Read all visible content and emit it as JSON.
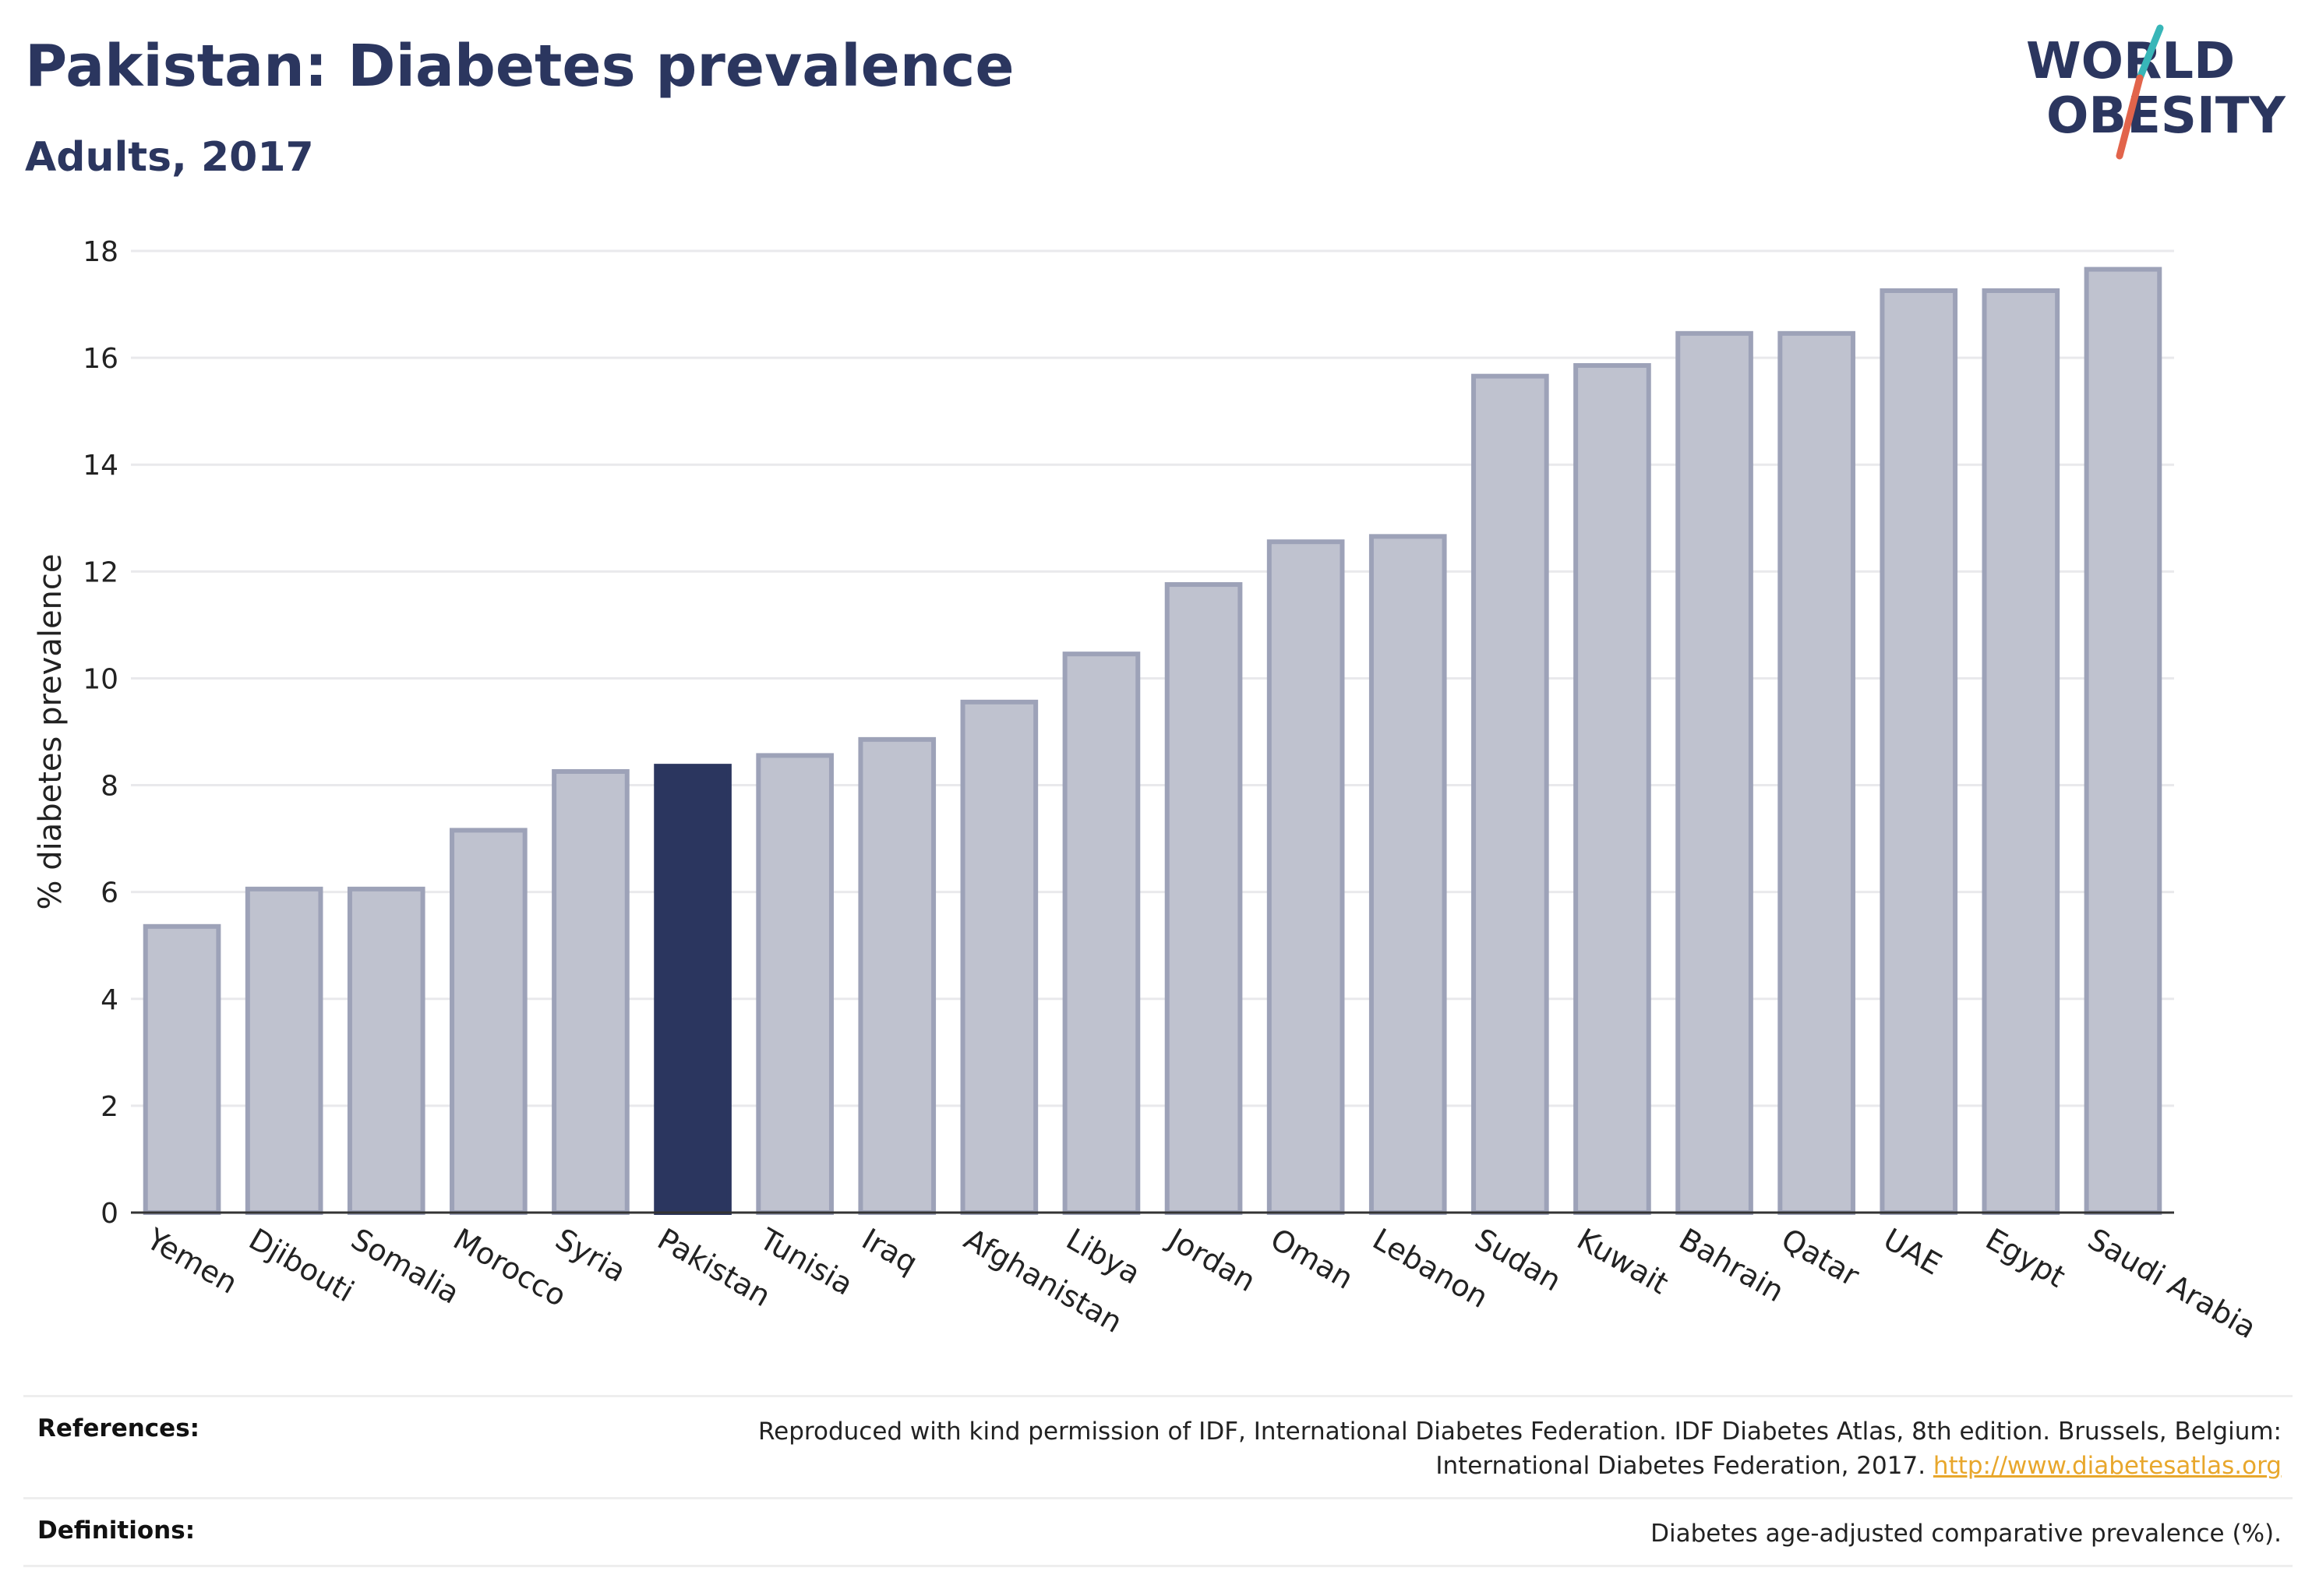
{
  "header": {
    "title": "Pakistan: Diabetes prevalence",
    "subtitle": "Adults, 2017"
  },
  "logo": {
    "line1": "WORLD",
    "line2": "OBESITY",
    "text_color": "#2b365f",
    "slash_color_top": "#38b6b8",
    "slash_color_bottom": "#e2644b"
  },
  "colors": {
    "highlight_bar": "#2b365f",
    "other_bar_fill": "#bfc2cf",
    "other_bar_stroke": "#9da2b8"
  },
  "chart_data": {
    "type": "bar",
    "title": "Pakistan: Diabetes prevalence",
    "subtitle": "Adults, 2017",
    "xlabel": "",
    "ylabel": "% diabetes prevalence",
    "ylim": [
      0,
      18
    ],
    "yticks": [
      0,
      2,
      4,
      6,
      8,
      10,
      12,
      14,
      16,
      18
    ],
    "grid": true,
    "highlight": "Pakistan",
    "categories": [
      "Yemen",
      "Djibouti",
      "Somalia",
      "Morocco",
      "Syria",
      "Pakistan",
      "Tunisia",
      "Iraq",
      "Afghanistan",
      "Libya",
      "Jordan",
      "Oman",
      "Lebanon",
      "Sudan",
      "Kuwait",
      "Bahrain",
      "Qatar",
      "UAE",
      "Egypt",
      "Saudi Arabia"
    ],
    "values": [
      5.4,
      6.1,
      6.1,
      7.2,
      8.3,
      8.4,
      8.6,
      8.9,
      9.6,
      10.5,
      11.8,
      12.6,
      12.7,
      15.7,
      15.9,
      16.5,
      16.5,
      17.3,
      17.3,
      17.7
    ]
  },
  "footer": {
    "references_label": "References:",
    "references_text": "Reproduced with kind permission of IDF, International Diabetes Federation. IDF Diabetes Atlas, 8th edition. Brussels, Belgium:",
    "references_text2": "International Diabetes Federation, 2017.",
    "references_link": "http://www.diabetesatlas.org",
    "definitions_label": "Definitions:",
    "definitions_text": "Diabetes age-adjusted comparative prevalence (%)."
  }
}
